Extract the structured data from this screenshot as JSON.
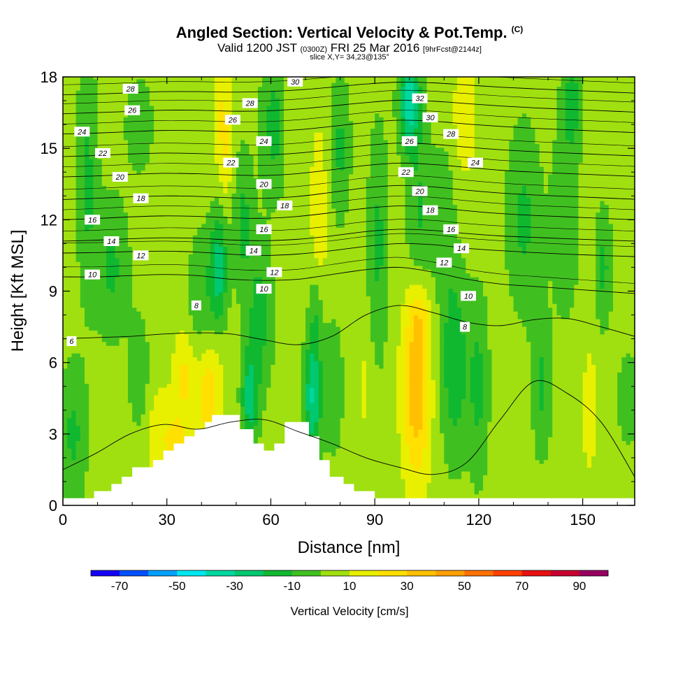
{
  "header": {
    "title": "Angled Section: Vertical Velocity & Pot.Temp.",
    "title_unit": "(C)",
    "valid_prefix": "Valid 1200 JST",
    "valid_z": "(0300Z)",
    "valid_date": "FRI 25 Mar 2016",
    "valid_fcst": "[9hrFcst@2144z]",
    "slice": "slice X,Y= 34,23@135°"
  },
  "chart_data": {
    "type": "heatmap",
    "title": "Angled Section: Vertical Velocity & Pot.Temp.",
    "xlabel": "Distance [nm]",
    "ylabel": "Height [Kft MSL]",
    "xlim": [
      0,
      165
    ],
    "ylim": [
      0,
      18
    ],
    "x_ticks": [
      0,
      30,
      60,
      90,
      120,
      150
    ],
    "x_tick_labels": [
      "0",
      "30",
      "60",
      "90",
      "120",
      "150"
    ],
    "y_ticks": [
      0,
      3,
      6,
      9,
      12,
      15,
      18
    ],
    "y_tick_labels": [
      "0",
      "3",
      "6",
      "9",
      "12",
      "15",
      "18"
    ],
    "colorbar": {
      "title": "Vertical Velocity [cm/s]",
      "levels": [
        -80,
        -70,
        -60,
        -50,
        -40,
        -30,
        -20,
        -10,
        0,
        10,
        20,
        30,
        40,
        50,
        60,
        70,
        80,
        90,
        100
      ],
      "tick_values": [
        -70,
        -50,
        -30,
        -10,
        10,
        30,
        50,
        70,
        90
      ],
      "tick_labels": [
        "-70",
        "-50",
        "-30",
        "-10",
        "10",
        "30",
        "50",
        "70",
        "90"
      ],
      "colors": [
        "#1400f5",
        "#0050ff",
        "#00a0ff",
        "#00e8f0",
        "#00d8a0",
        "#00c870",
        "#10b830",
        "#40c020",
        "#a0e010",
        "#e8f000",
        "#ffe000",
        "#ffc000",
        "#ffa000",
        "#ff7000",
        "#ff4000",
        "#e81010",
        "#c80030",
        "#980060"
      ],
      "shown_at_levels": {
        "bg": 5,
        "green_dark": -5,
        "green_mid": -15,
        "cyan_teal": -25,
        "cyan": -35,
        "light_blue": -45,
        "yellow": 15,
        "gold": 25,
        "orange": 35
      }
    },
    "vertical_velocity_features": [
      {
        "x": 7,
        "z": 14,
        "dx": 3,
        "dz": 5,
        "w": -12
      },
      {
        "x": 14,
        "z": 10,
        "dx": 5,
        "dz": 3,
        "w": -12
      },
      {
        "x": 3,
        "z": 3,
        "dx": 4,
        "dz": 3,
        "w": -12
      },
      {
        "x": 22,
        "z": 5.5,
        "dx": 3,
        "dz": 2.5,
        "w": -8
      },
      {
        "x": 22,
        "z": 16,
        "dx": 4,
        "dz": 2,
        "w": -8
      },
      {
        "x": 28,
        "z": 3,
        "dx": 4,
        "dz": 2,
        "w": 18
      },
      {
        "x": 35,
        "z": 5.5,
        "dx": 3,
        "dz": 2,
        "w": 22
      },
      {
        "x": 42,
        "z": 4.8,
        "dx": 4,
        "dz": 2.5,
        "w": 28
      },
      {
        "x": 33,
        "z": 2.3,
        "dx": 3,
        "dz": 1.5,
        "w": 22
      },
      {
        "x": 40,
        "z": 8.5,
        "dx": 4,
        "dz": 3,
        "w": -10
      },
      {
        "x": 45,
        "z": 10,
        "dx": 2.5,
        "dz": 2.5,
        "w": -25
      },
      {
        "x": 52,
        "z": 12,
        "dx": 3,
        "dz": 3,
        "w": -12
      },
      {
        "x": 46,
        "z": 16.5,
        "dx": 2.5,
        "dz": 2.5,
        "w": 20
      },
      {
        "x": 47,
        "z": 14,
        "dx": 2,
        "dz": 2,
        "w": 14
      },
      {
        "x": 54,
        "z": 4.5,
        "dx": 2.5,
        "dz": 2,
        "w": -25
      },
      {
        "x": 57,
        "z": 8,
        "dx": 4,
        "dz": 3,
        "w": -14
      },
      {
        "x": 61,
        "z": 16,
        "dx": 4,
        "dz": 3,
        "w": -14
      },
      {
        "x": 66,
        "z": 16.5,
        "dx": 2.5,
        "dz": 3,
        "w": 12
      },
      {
        "x": 64,
        "z": 8.5,
        "dx": 4,
        "dz": 2,
        "w": 8
      },
      {
        "x": 72,
        "z": 4.5,
        "dx": 2.5,
        "dz": 2.5,
        "w": -30
      },
      {
        "x": 74,
        "z": 12.5,
        "dx": 2.5,
        "dz": 3.5,
        "w": 18
      },
      {
        "x": 73,
        "z": 8,
        "dx": 2,
        "dz": 2,
        "w": -8
      },
      {
        "x": 78,
        "z": 5,
        "dx": 3,
        "dz": 3,
        "w": -8
      },
      {
        "x": 80,
        "z": 15,
        "dx": 3,
        "dz": 3,
        "w": -12
      },
      {
        "x": 87,
        "z": 5,
        "dx": 2.5,
        "dz": 2.5,
        "w": 12
      },
      {
        "x": 91,
        "z": 11,
        "dx": 3,
        "dz": 5,
        "w": -12
      },
      {
        "x": 102,
        "z": 5,
        "dx": 4,
        "dz": 4,
        "w": 38
      },
      {
        "x": 103,
        "z": 8,
        "dx": 3,
        "dz": 1.5,
        "w": 18
      },
      {
        "x": 100,
        "z": 17,
        "dx": 3,
        "dz": 2,
        "w": -35
      },
      {
        "x": 103,
        "z": 12,
        "dx": 4,
        "dz": 4,
        "w": -12
      },
      {
        "x": 113,
        "z": 6,
        "dx": 4,
        "dz": 4,
        "w": -18
      },
      {
        "x": 110,
        "z": 12,
        "dx": 3,
        "dz": 3,
        "w": -8
      },
      {
        "x": 120,
        "z": 5,
        "dx": 3,
        "dz": 4,
        "w": -12
      },
      {
        "x": 116,
        "z": 16.5,
        "dx": 3,
        "dz": 2.5,
        "w": 20
      },
      {
        "x": 131,
        "z": 3.5,
        "dx": 4,
        "dz": 3,
        "w": 10
      },
      {
        "x": 133,
        "z": 12,
        "dx": 5,
        "dz": 4,
        "w": -12
      },
      {
        "x": 138,
        "z": 5,
        "dx": 3,
        "dz": 3,
        "w": -12
      },
      {
        "x": 145,
        "z": 12,
        "dx": 4,
        "dz": 4,
        "w": -10
      },
      {
        "x": 147,
        "z": 17,
        "dx": 3,
        "dz": 2,
        "w": -14
      },
      {
        "x": 152,
        "z": 4,
        "dx": 2,
        "dz": 2.5,
        "w": 18
      },
      {
        "x": 156,
        "z": 10,
        "dx": 2.5,
        "dz": 2.5,
        "w": -12
      },
      {
        "x": 163,
        "z": 4.5,
        "dx": 3,
        "dz": 2,
        "w": -8
      }
    ],
    "terrain": [
      [
        0,
        0.3
      ],
      [
        9,
        0.3
      ],
      [
        9,
        0.6
      ],
      [
        14,
        0.6
      ],
      [
        14,
        0.9
      ],
      [
        17,
        0.9
      ],
      [
        17,
        1.2
      ],
      [
        20,
        1.2
      ],
      [
        20,
        1.6
      ],
      [
        26,
        1.6
      ],
      [
        26,
        1.9
      ],
      [
        29,
        1.9
      ],
      [
        29,
        2.3
      ],
      [
        32,
        2.3
      ],
      [
        32,
        2.6
      ],
      [
        35,
        2.6
      ],
      [
        35,
        2.9
      ],
      [
        38,
        2.9
      ],
      [
        38,
        3.2
      ],
      [
        41,
        3.2
      ],
      [
        41,
        3.5
      ],
      [
        43,
        3.5
      ],
      [
        43,
        3.8
      ],
      [
        51,
        3.8
      ],
      [
        51,
        3.2
      ],
      [
        55,
        3.2
      ],
      [
        55,
        2.6
      ],
      [
        58,
        2.6
      ],
      [
        58,
        2.3
      ],
      [
        61,
        2.3
      ],
      [
        61,
        2.6
      ],
      [
        64,
        2.6
      ],
      [
        64,
        3.5
      ],
      [
        71,
        3.5
      ],
      [
        71,
        2.9
      ],
      [
        74,
        2.9
      ],
      [
        74,
        1.9
      ],
      [
        77,
        1.9
      ],
      [
        77,
        1.2
      ],
      [
        81,
        1.2
      ],
      [
        81,
        0.9
      ],
      [
        84,
        0.9
      ],
      [
        84,
        0.6
      ],
      [
        90,
        0.6
      ],
      [
        90,
        0.3
      ],
      [
        165,
        0.3
      ]
    ],
    "potential_temperature_isentropes": [
      {
        "theta": 6,
        "z": [
          1.5,
          2.2,
          3.0,
          3.4,
          3.2,
          3.5,
          3.6,
          3.1,
          2.6,
          2.0,
          1.6,
          1.3,
          1.8,
          3.6,
          5.2,
          4.7,
          3.5,
          1.2
        ]
      },
      {
        "theta": 8,
        "z": [
          7.0,
          7.05,
          7.1,
          7.2,
          7.25,
          7.2,
          6.95,
          6.75,
          7.1,
          8.0,
          8.4,
          8.1,
          7.7,
          7.55,
          7.8,
          7.85,
          7.5,
          7.1
        ]
      },
      {
        "theta": 10,
        "z": [
          9.6,
          9.6,
          9.65,
          9.7,
          9.65,
          9.5,
          9.45,
          9.5,
          9.7,
          9.9,
          10.0,
          9.8,
          9.5,
          9.3,
          9.2,
          9.1,
          9.0,
          8.9
        ]
      },
      {
        "theta": 12,
        "z": [
          10.6,
          10.62,
          10.66,
          10.68,
          10.64,
          10.55,
          10.5,
          10.56,
          10.7,
          10.88,
          11.0,
          10.95,
          10.8,
          10.7,
          10.62,
          10.55,
          10.5,
          10.45
        ]
      },
      {
        "theta": 14,
        "z": [
          11.1,
          11.14,
          11.2,
          11.24,
          11.22,
          11.15,
          11.12,
          11.18,
          11.32,
          11.5,
          11.6,
          11.55,
          11.42,
          11.32,
          11.26,
          11.2,
          11.15,
          11.1
        ]
      },
      {
        "theta": 16,
        "z": [
          12.0,
          12.05,
          12.12,
          12.16,
          12.14,
          12.08,
          12.06,
          12.14,
          12.3,
          12.48,
          12.58,
          12.52,
          12.38,
          12.26,
          12.18,
          12.12,
          12.06,
          12.0
        ]
      },
      {
        "theta": 18,
        "z": [
          12.85,
          12.9,
          12.96,
          13.0,
          12.98,
          12.92,
          12.9,
          12.98,
          13.15,
          13.34,
          13.44,
          13.38,
          13.24,
          13.12,
          13.04,
          12.98,
          12.92,
          12.86
        ]
      },
      {
        "theta": 20,
        "z": [
          13.8,
          13.84,
          13.9,
          13.95,
          13.93,
          13.88,
          13.86,
          13.94,
          14.1,
          14.28,
          14.38,
          14.32,
          14.2,
          14.08,
          14.0,
          13.94,
          13.88,
          13.82
        ]
      },
      {
        "theta": 22,
        "z": [
          14.65,
          14.7,
          14.76,
          14.8,
          14.78,
          14.73,
          14.72,
          14.8,
          14.95,
          15.12,
          15.22,
          15.17,
          15.05,
          14.94,
          14.86,
          14.8,
          14.74,
          14.68
        ]
      },
      {
        "theta": 24,
        "z": [
          15.6,
          15.64,
          15.7,
          15.75,
          15.74,
          15.7,
          15.7,
          15.78,
          15.92,
          16.08,
          16.18,
          16.14,
          16.02,
          15.92,
          15.84,
          15.78,
          15.72,
          15.66
        ]
      },
      {
        "theta": 26,
        "z": [
          16.45,
          16.5,
          16.55,
          16.6,
          16.6,
          16.56,
          16.57,
          16.65,
          16.78,
          16.92,
          17.02,
          16.98,
          16.88,
          16.78,
          16.7,
          16.64,
          16.58,
          16.52
        ]
      },
      {
        "theta": 28,
        "z": [
          17.25,
          17.28,
          17.33,
          17.38,
          17.38,
          17.36,
          17.38,
          17.45,
          17.57,
          17.7,
          17.78,
          17.75,
          17.66,
          17.57,
          17.5,
          17.44,
          17.38,
          17.32
        ]
      },
      {
        "theta": 30,
        "z": [
          18.0,
          18.02,
          18.06,
          18.1,
          18.12,
          18.1,
          18.12,
          18.18,
          18.28,
          18.4,
          18.48,
          18.45,
          18.38,
          18.3,
          18.24,
          18.18,
          18.12,
          18.06
        ]
      }
    ],
    "isentrope_x": [
      0,
      9.7,
      19.4,
      29.1,
      38.8,
      48.5,
      58.2,
      67.9,
      77.6,
      87.4,
      97.1,
      106.8,
      116.5,
      126.2,
      135.9,
      145.6,
      155.3,
      165
    ],
    "contour_labels": [
      {
        "text": "6",
        "x": 2.5,
        "z": 6.9
      },
      {
        "text": "10",
        "x": 8.5,
        "z": 9.7
      },
      {
        "text": "14",
        "x": 14,
        "z": 11.1
      },
      {
        "text": "16",
        "x": 8.5,
        "z": 12.0
      },
      {
        "text": "12",
        "x": 22.5,
        "z": 10.5
      },
      {
        "text": "18",
        "x": 22.5,
        "z": 12.9
      },
      {
        "text": "20",
        "x": 16.5,
        "z": 13.8
      },
      {
        "text": "22",
        "x": 11.5,
        "z": 14.8
      },
      {
        "text": "24",
        "x": 5.5,
        "z": 15.7
      },
      {
        "text": "26",
        "x": 20,
        "z": 16.6
      },
      {
        "text": "28",
        "x": 19.5,
        "z": 17.5
      },
      {
        "text": "8",
        "x": 38.5,
        "z": 8.4
      },
      {
        "text": "14",
        "x": 55,
        "z": 10.7
      },
      {
        "text": "10",
        "x": 58,
        "z": 9.1
      },
      {
        "text": "12",
        "x": 61,
        "z": 9.8
      },
      {
        "text": "16",
        "x": 58,
        "z": 11.6
      },
      {
        "text": "20",
        "x": 58,
        "z": 13.5
      },
      {
        "text": "18",
        "x": 64,
        "z": 12.6
      },
      {
        "text": "22",
        "x": 48.5,
        "z": 14.4
      },
      {
        "text": "24",
        "x": 58,
        "z": 15.3
      },
      {
        "text": "26",
        "x": 49,
        "z": 16.2
      },
      {
        "text": "28",
        "x": 54,
        "z": 16.9
      },
      {
        "text": "30",
        "x": 67,
        "z": 17.8
      },
      {
        "text": "12",
        "x": 110,
        "z": 10.2
      },
      {
        "text": "14",
        "x": 115,
        "z": 10.8
      },
      {
        "text": "16",
        "x": 112,
        "z": 11.6
      },
      {
        "text": "18",
        "x": 106,
        "z": 12.4
      },
      {
        "text": "20",
        "x": 103,
        "z": 13.2
      },
      {
        "text": "22",
        "x": 99,
        "z": 14.0
      },
      {
        "text": "24",
        "x": 119,
        "z": 14.4
      },
      {
        "text": "26",
        "x": 100,
        "z": 15.3
      },
      {
        "text": "28",
        "x": 112,
        "z": 15.6
      },
      {
        "text": "30",
        "x": 106,
        "z": 16.3
      },
      {
        "text": "32",
        "x": 103,
        "z": 17.1
      },
      {
        "text": "10",
        "x": 117,
        "z": 8.8
      },
      {
        "text": "8",
        "x": 116,
        "z": 7.5
      }
    ],
    "grid": false,
    "legend": "colorbar bottom"
  }
}
